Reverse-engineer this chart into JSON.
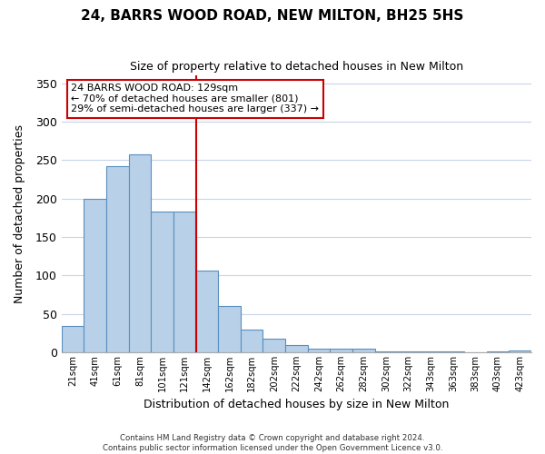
{
  "title": "24, BARRS WOOD ROAD, NEW MILTON, BH25 5HS",
  "subtitle": "Size of property relative to detached houses in New Milton",
  "xlabel": "Distribution of detached houses by size in New Milton",
  "ylabel": "Number of detached properties",
  "bar_labels": [
    "21sqm",
    "41sqm",
    "61sqm",
    "81sqm",
    "101sqm",
    "121sqm",
    "142sqm",
    "162sqm",
    "182sqm",
    "202sqm",
    "222sqm",
    "242sqm",
    "262sqm",
    "282sqm",
    "302sqm",
    "322sqm",
    "343sqm",
    "363sqm",
    "383sqm",
    "403sqm",
    "423sqm"
  ],
  "bar_values": [
    34,
    199,
    242,
    257,
    183,
    183,
    106,
    60,
    30,
    18,
    9,
    5,
    5,
    5,
    1,
    1,
    1,
    1,
    0,
    1,
    2
  ],
  "bar_color": "#b8d0e8",
  "bar_edge_color": "#5a8fbf",
  "vline_x_index": 5.5,
  "vline_color": "#cc0000",
  "ylim": [
    0,
    360
  ],
  "yticks": [
    0,
    50,
    100,
    150,
    200,
    250,
    300,
    350
  ],
  "annotation_lines": [
    "24 BARRS WOOD ROAD: 129sqm",
    "← 70% of detached houses are smaller (801)",
    "29% of semi-detached houses are larger (337) →"
  ],
  "footer_lines": [
    "Contains HM Land Registry data © Crown copyright and database right 2024.",
    "Contains public sector information licensed under the Open Government Licence v3.0."
  ],
  "background_color": "#ffffff",
  "grid_color": "#c8d4e8"
}
